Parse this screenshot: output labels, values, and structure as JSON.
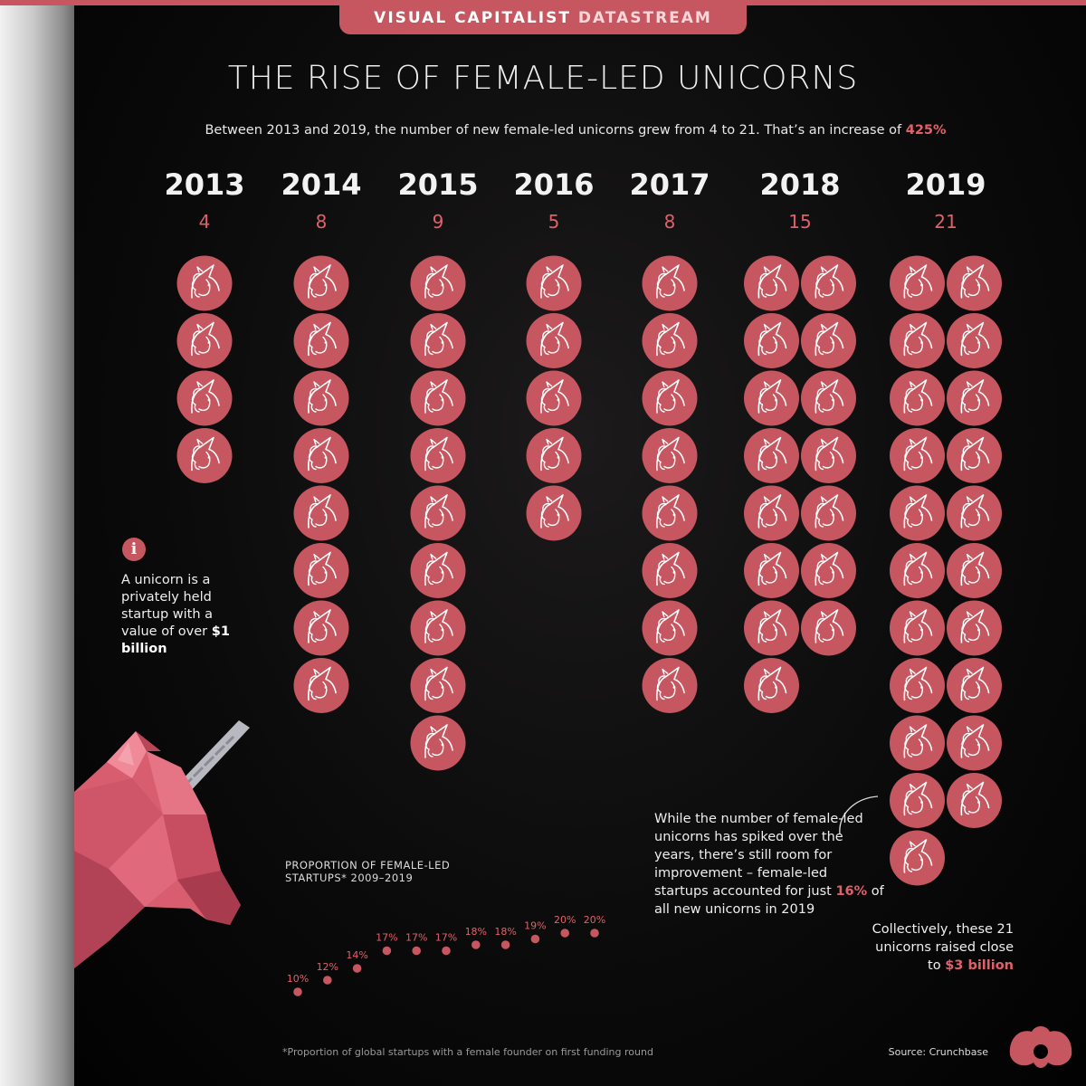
{
  "brand": {
    "part1": "VISUAL CAPITALIST",
    "part2": "DATASTREAM"
  },
  "title": "THE RISE OF FEMALE-LED UNICORNS",
  "subtitle": {
    "text": "Between 2013 and 2019, the number of new female-led unicorns grew from 4 to 21. That’s an increase of ",
    "accent": "425%"
  },
  "info": {
    "icon": "info-icon",
    "text": "A unicorn is a privately held startup with a value of over ",
    "bold": "$1 billion"
  },
  "callout": {
    "text_before": "While the number of female-led unicorns has spiked over the years, there’s still room for improvement – female-led startups accounted for just ",
    "accent": "16%",
    "text_after": " of all new unicorns in 2019"
  },
  "raised": {
    "text": "Collectively, these 21 unicorns raised close to ",
    "accent": "$3 billion"
  },
  "footnote": "*Proportion of global startups with a female founder on first funding round",
  "source": "Source: Crunchbase",
  "colors": {
    "accent": "#c6565f",
    "accent_text": "#e0606a",
    "background": "#000000"
  },
  "chart_data": [
    {
      "type": "bar",
      "title": "",
      "categories": [
        "2013",
        "2014",
        "2015",
        "2016",
        "2017",
        "2018",
        "2019"
      ],
      "values": [
        4,
        8,
        9,
        5,
        8,
        15,
        21
      ],
      "value_labels": [
        "4",
        "8",
        "9",
        "5",
        "8",
        "15",
        "21"
      ],
      "marker": "unicorn-icon"
    },
    {
      "type": "scatter",
      "title": "PROPORTION OF FEMALE-LED STARTUPS* 2009–2019",
      "x": [
        2009,
        2010,
        2011,
        2012,
        2013,
        2014,
        2015,
        2016,
        2017,
        2018,
        2019
      ],
      "values": [
        10,
        12,
        14,
        17,
        17,
        17,
        18,
        18,
        19,
        20,
        20
      ],
      "labels": [
        "10%",
        "12%",
        "14%",
        "17%",
        "17%",
        "17%",
        "18%",
        "18%",
        "19%",
        "20%",
        "20%"
      ],
      "xlabel": "",
      "ylabel": ""
    }
  ]
}
